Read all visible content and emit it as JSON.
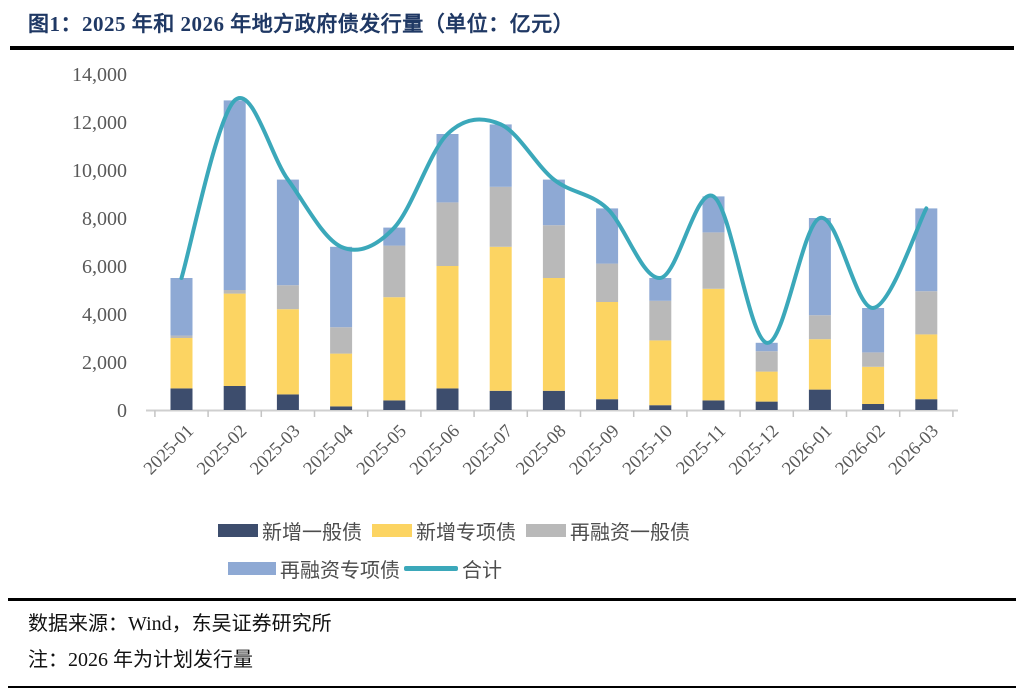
{
  "title": "图1：2025 年和 2026 年地方政府债发行量（单位：亿元）",
  "colors": {
    "title": "#1f3864",
    "navy": "#3d4d6d",
    "yellow": "#fcd462",
    "gray": "#b9b9b9",
    "blue": "#8ea9d4",
    "teal": "#3ba8ba",
    "axis_text": "#595959",
    "axis_line": "#cfcfcf"
  },
  "chart_data": {
    "type": "bar",
    "stacked": true,
    "title": "2025 年和 2026 年地方政府债发行量",
    "unit": "亿元",
    "grid": false,
    "legend_position": "bottom",
    "ylim": [
      0,
      14000
    ],
    "ytick_step": 2000,
    "ytick_labels": [
      "0",
      "2,000",
      "4,000",
      "6,000",
      "8,000",
      "10,000",
      "12,000",
      "14,000"
    ],
    "categories": [
      "2025-01",
      "2025-02",
      "2025-03",
      "2025-04",
      "2025-05",
      "2025-06",
      "2025-07",
      "2025-08",
      "2025-09",
      "2025-10",
      "2025-11",
      "2025-12",
      "2026-01",
      "2026-02",
      "2026-03"
    ],
    "series": [
      {
        "name": "新增一般债",
        "type": "bar",
        "color_key": "navy",
        "values": [
          900,
          1000,
          650,
          150,
          400,
          900,
          800,
          800,
          450,
          200,
          400,
          350,
          850,
          250,
          450
        ]
      },
      {
        "name": "新增专项债",
        "type": "bar",
        "color_key": "yellow",
        "values": [
          2100,
          3850,
          3550,
          2200,
          4300,
          5100,
          6000,
          4700,
          4050,
          2700,
          4650,
          1250,
          2100,
          1550,
          2700
        ]
      },
      {
        "name": "再融资一般债",
        "type": "bar",
        "color_key": "gray",
        "values": [
          100,
          150,
          1000,
          1100,
          2150,
          2650,
          2500,
          2200,
          1600,
          1650,
          2350,
          850,
          1000,
          600,
          1800
        ]
      },
      {
        "name": "再融资专项债",
        "type": "bar",
        "color_key": "blue",
        "values": [
          2400,
          7900,
          4400,
          3350,
          750,
          2850,
          2600,
          1900,
          2300,
          950,
          1500,
          350,
          4050,
          1850,
          3450
        ]
      },
      {
        "name": "合计",
        "type": "line",
        "color_key": "teal",
        "values": [
          5500,
          12900,
          9600,
          6800,
          7600,
          11500,
          11900,
          9600,
          8400,
          5500,
          8900,
          2800,
          8000,
          4250,
          8400
        ]
      }
    ]
  },
  "footer": {
    "source": "数据来源：Wind，东吴证券研究所",
    "note": "注：2026 年为计划发行量"
  }
}
